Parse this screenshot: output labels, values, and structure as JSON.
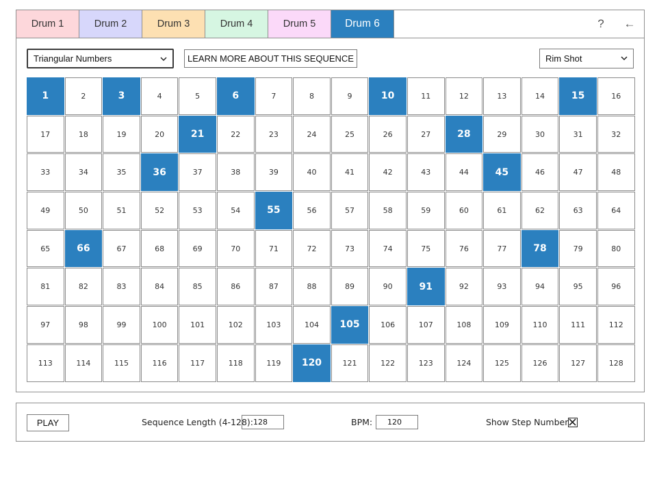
{
  "tabs": [
    {
      "label": "Drum 1",
      "color": "#fdd7db",
      "active": false
    },
    {
      "label": "Drum 2",
      "color": "#d7d7fb",
      "active": false
    },
    {
      "label": "Drum 3",
      "color": "#fde0b2",
      "active": false
    },
    {
      "label": "Drum 4",
      "color": "#d6f6e2",
      "active": false
    },
    {
      "label": "Drum 5",
      "color": "#fbd9f9",
      "active": false
    },
    {
      "label": "Drum 6",
      "color": "#2b80bf",
      "active": true
    }
  ],
  "help_label": "?",
  "back_label": "←",
  "sequence_select": {
    "value": "Triangular Numbers"
  },
  "learn_more_label": "LEARN MORE ABOUT THIS SEQUENCE",
  "drum_sound_select": {
    "value": "Rim Shot"
  },
  "grid": {
    "total_steps": 128,
    "active_steps": [
      1,
      3,
      6,
      10,
      15,
      21,
      28,
      36,
      45,
      55,
      66,
      78,
      91,
      105,
      120
    ],
    "accent_color": "#2b80bf"
  },
  "footer": {
    "play_label": "PLAY",
    "length_label": "Sequence Length (4-128):",
    "length_value": "128",
    "bpm_label": "BPM:",
    "bpm_value": "120",
    "show_steps_label": "Show Step Numbers:",
    "show_steps_checked": true
  }
}
